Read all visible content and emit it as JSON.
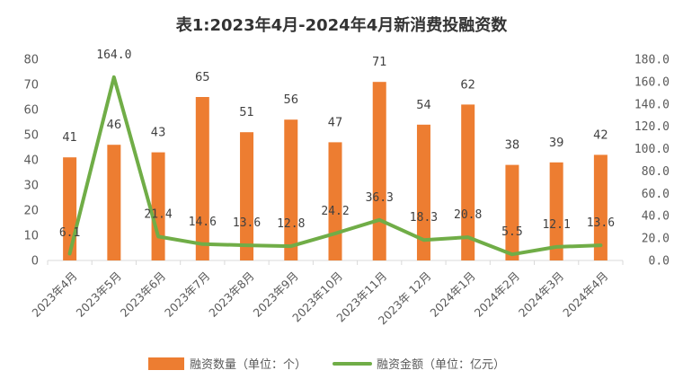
{
  "chart_data": {
    "type": "bar",
    "title": "表1:2023年4月-2024年4月新消费投融资数",
    "categories": [
      "2023年4月",
      "2023年5月",
      "2023年6月",
      "2023年7月",
      "2023年8月",
      "2023年9月",
      "2023年10月",
      "2023年11月",
      "2023年 12月",
      "2024年1月",
      "2024年2月",
      "2024年3月",
      "2024年4月"
    ],
    "series": [
      {
        "name": "融资数量（单位：个）",
        "type": "bar",
        "axis": "left",
        "color": "#ED7D31",
        "values": [
          41,
          46,
          43,
          65,
          51,
          56,
          47,
          71,
          54,
          62,
          38,
          39,
          42
        ],
        "labels": [
          "41",
          "46",
          "43",
          "65",
          "51",
          "56",
          "47",
          "71",
          "54",
          "62",
          "38",
          "39",
          "42"
        ]
      },
      {
        "name": "融资金额（单位：亿元）",
        "type": "line",
        "axis": "right",
        "color": "#70AD47",
        "values": [
          6.1,
          164.0,
          21.4,
          14.6,
          13.6,
          12.8,
          24.2,
          36.3,
          18.3,
          20.8,
          5.5,
          12.1,
          13.6
        ],
        "labels": [
          "6.1",
          "164.0",
          "21.4",
          "14.6",
          "13.6",
          "12.8",
          "24.2",
          "36.3",
          "18.3",
          "20.8",
          "5.5",
          "12.1",
          "13.6"
        ]
      }
    ],
    "ylim_left": [
      0,
      80
    ],
    "yticks_left": [
      "0",
      "10",
      "20",
      "30",
      "40",
      "50",
      "60",
      "70",
      "80"
    ],
    "ylim_right": [
      0,
      180
    ],
    "yticks_right": [
      "0.0",
      "20.0",
      "40.0",
      "60.0",
      "80.0",
      "100.0",
      "120.0",
      "140.0",
      "160.0",
      "180.0"
    ],
    "grid": false,
    "legend_position": "bottom"
  }
}
